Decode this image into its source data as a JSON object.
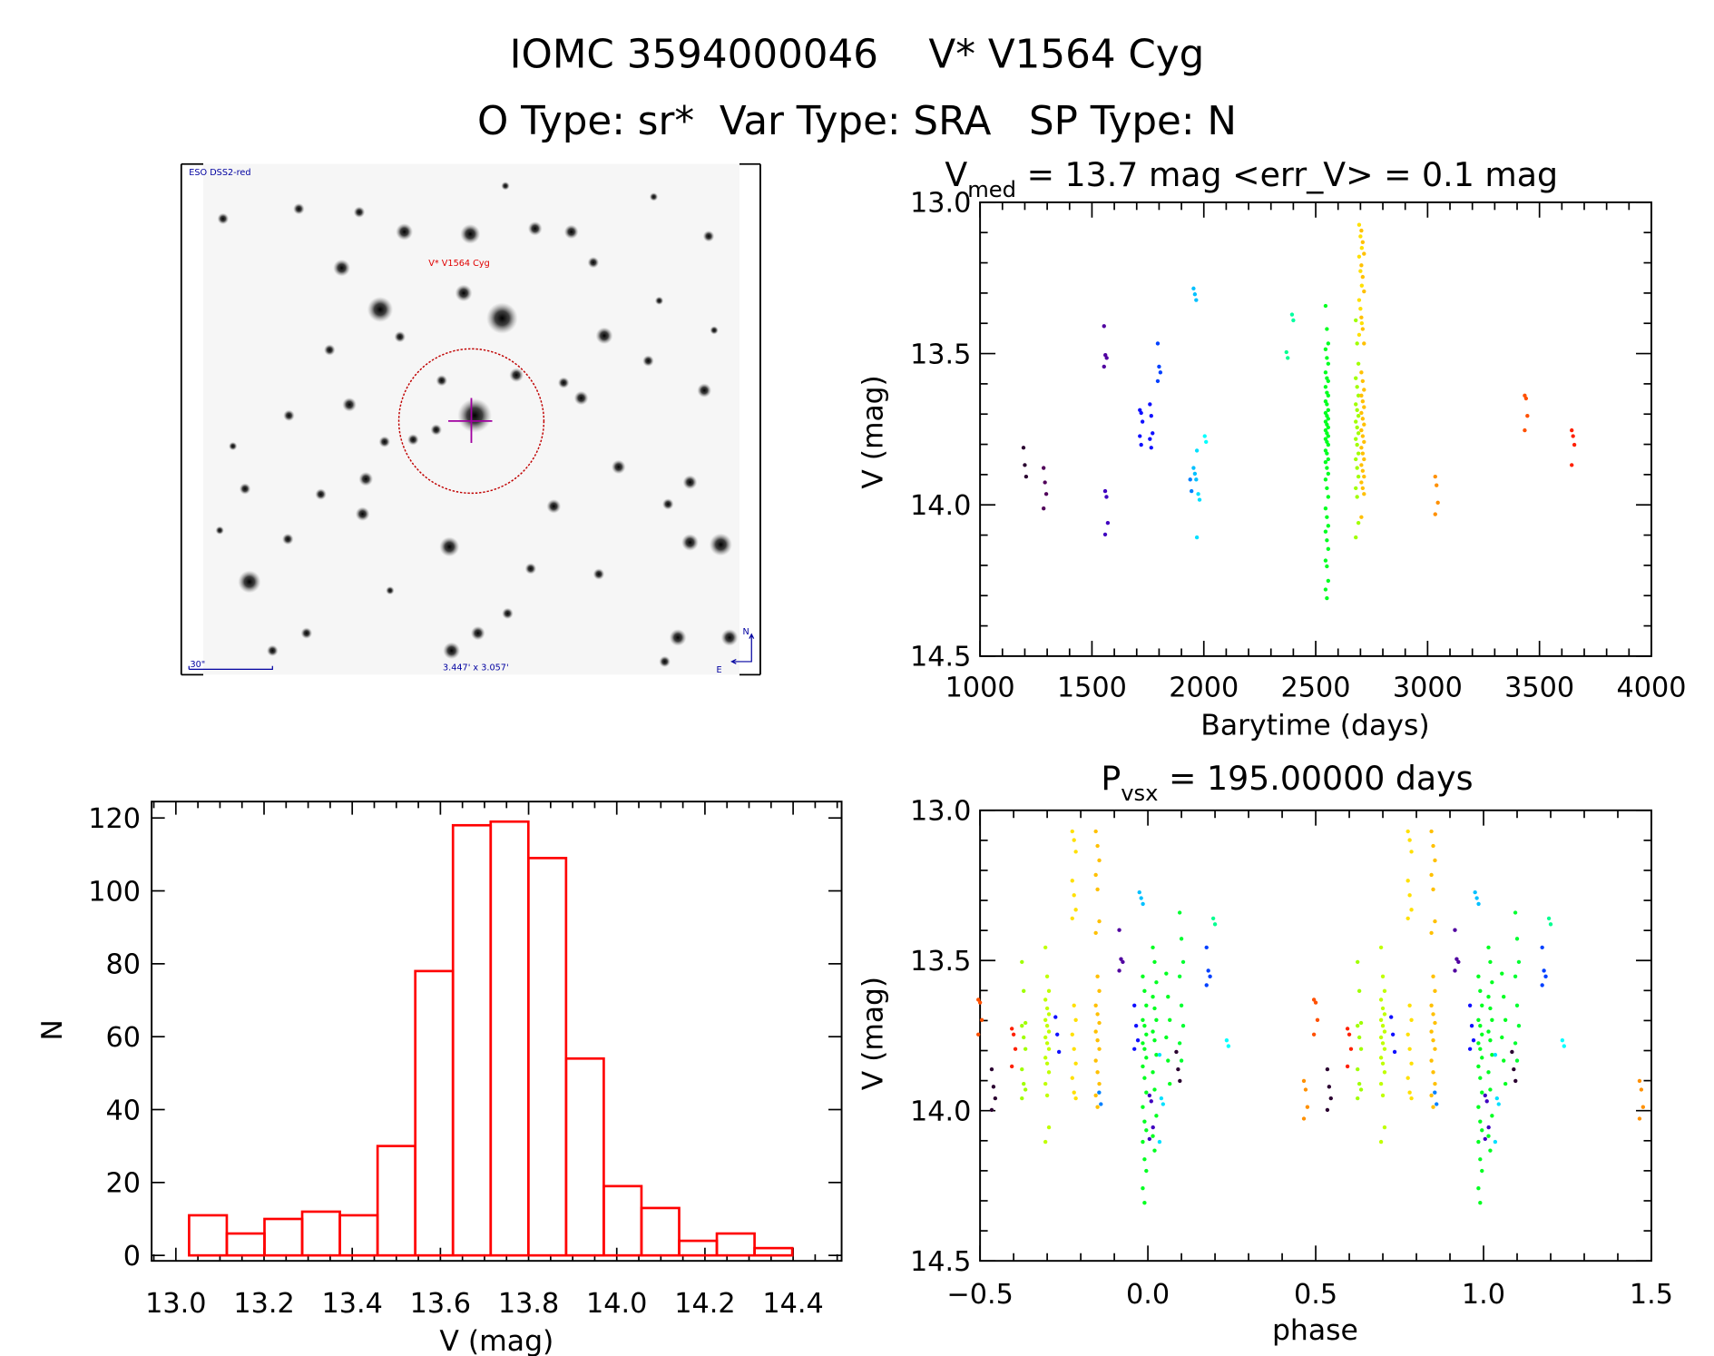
{
  "header": {
    "title_line1": "IOMC 3594000046    V* V1564 Cyg",
    "title_line2": "O Type: sr*  Var Type: SRA   SP Type: N"
  },
  "finder_image": {
    "survey_label": "ESO DSS2-red",
    "target_label": "V* V1564 Cyg",
    "scale_label": "30\"",
    "fov_label": "3.447' x 3.057'",
    "north_label": "N",
    "east_label": "E"
  },
  "chart_data": [
    {
      "id": "lightcurve",
      "type": "scatter",
      "title_parts": {
        "v": "V",
        "sub": "med",
        "rest": " = 13.7 mag <err_V> = 0.1 mag"
      },
      "xlabel": "Barytime (days)",
      "ylabel": "V (mag)",
      "xlim": [
        1000,
        4000
      ],
      "ylim": [
        14.5,
        13.0
      ],
      "y_inverted": true,
      "xticks": [
        "1000",
        "1500",
        "2000",
        "2500",
        "3000",
        "3500",
        "4000"
      ],
      "yticks": [
        "13.0",
        "13.5",
        "14.0",
        "14.5"
      ],
      "groups": [
        {
          "x": 1200,
          "color": "#2a0030",
          "y": [
            13.81,
            13.87,
            13.91
          ]
        },
        {
          "x": 1290,
          "color": "#50005a",
          "y": [
            13.88,
            13.93,
            13.97,
            14.02
          ]
        },
        {
          "x": 1560,
          "color": "#5000a0",
          "y": [
            13.39,
            13.49,
            13.5,
            13.53
          ]
        },
        {
          "x": 1565,
          "color": "#4000c0",
          "y": [
            13.96,
            13.98,
            14.07,
            14.11
          ]
        },
        {
          "x": 1720,
          "color": "#1010ff",
          "y": [
            13.68,
            13.69,
            13.72,
            13.77,
            13.8
          ]
        },
        {
          "x": 1765,
          "color": "#1010ff",
          "y": [
            13.66,
            13.7,
            13.76,
            13.78,
            13.81
          ]
        },
        {
          "x": 1800,
          "color": "#0040ff",
          "y": [
            13.45,
            13.53,
            13.55,
            13.58
          ]
        },
        {
          "x": 1945,
          "color": "#0080ff",
          "y": [
            13.92,
            13.96
          ]
        },
        {
          "x": 1960,
          "color": "#00c0ff",
          "y": [
            13.26,
            13.28,
            13.3,
            13.88,
            13.9,
            13.92
          ]
        },
        {
          "x": 1975,
          "color": "#00e0ff",
          "y": [
            13.82,
            13.97,
            13.99,
            14.12
          ]
        },
        {
          "x": 2010,
          "color": "#00ffff",
          "y": [
            13.77,
            13.79
          ]
        },
        {
          "x": 2375,
          "color": "#00ff90",
          "y": [
            13.48,
            13.5
          ]
        },
        {
          "x": 2400,
          "color": "#00ffa0",
          "y": [
            13.35,
            13.37
          ]
        },
        {
          "x": 2550,
          "color": "#00ff20",
          "y": [
            13.32,
            13.4,
            13.45,
            13.47,
            13.5,
            13.52,
            13.55,
            13.57,
            13.58,
            13.6,
            13.62,
            13.63,
            13.65,
            13.66,
            13.68,
            13.69,
            13.7,
            13.71,
            13.72,
            13.73,
            13.74,
            13.75,
            13.76,
            13.77,
            13.78,
            13.79,
            13.8,
            13.82,
            13.83,
            13.85,
            13.86,
            13.88,
            13.9,
            13.92,
            13.95,
            13.98,
            14.02,
            14.05,
            14.08,
            14.1,
            14.13,
            14.16,
            14.2,
            14.22,
            14.27,
            14.3,
            14.33
          ]
        },
        {
          "x": 2685,
          "color": "#a0ff00",
          "y": [
            13.37,
            13.45,
            13.52,
            13.57,
            13.6,
            13.63,
            13.66,
            13.68,
            13.7,
            13.72,
            13.74,
            13.76,
            13.78,
            13.8,
            13.83,
            13.85,
            13.88,
            13.91,
            13.95,
            13.98,
            14.07,
            14.12
          ]
        },
        {
          "x": 2700,
          "color": "#ffe000",
          "y": [
            13.04,
            13.08,
            13.12,
            13.15,
            13.2,
            13.25,
            13.3,
            13.33,
            13.38,
            13.42
          ]
        },
        {
          "x": 2710,
          "color": "#ffc000",
          "y": [
            13.06,
            13.1,
            13.14,
            13.18,
            13.22,
            13.27,
            13.36,
            13.4,
            13.45,
            13.55,
            13.58,
            13.61,
            13.63,
            13.65,
            13.67,
            13.69,
            13.71,
            13.73,
            13.75,
            13.77,
            13.79,
            13.81,
            13.83,
            13.85,
            13.87,
            13.89,
            13.91,
            13.93,
            13.95,
            13.97,
            14.05
          ]
        },
        {
          "x": 3040,
          "color": "#ff9000",
          "y": [
            13.91,
            13.94,
            14.0,
            14.04
          ]
        },
        {
          "x": 3440,
          "color": "#ff5000",
          "y": [
            13.63,
            13.64,
            13.7,
            13.75
          ]
        },
        {
          "x": 3650,
          "color": "#ff2000",
          "y": [
            13.75,
            13.77,
            13.8,
            13.87
          ]
        }
      ]
    },
    {
      "id": "histogram",
      "type": "bar",
      "xlabel": "V (mag)",
      "ylabel": "N",
      "xlim": [
        12.945,
        14.51
      ],
      "ylim": [
        -1.5,
        124.5
      ],
      "xticks": [
        "13.0",
        "13.2",
        "13.4",
        "13.6",
        "13.8",
        "14.0",
        "14.2",
        "14.4"
      ],
      "yticks": [
        "0",
        "20",
        "40",
        "60",
        "80",
        "100",
        "120"
      ],
      "bin_start": 13.03,
      "bin_width": 0.0855,
      "values": [
        11,
        6,
        10,
        12,
        11,
        30,
        78,
        118,
        119,
        109,
        54,
        19,
        13,
        4,
        6,
        2
      ],
      "color": "#ff0000"
    },
    {
      "id": "phase",
      "type": "scatter",
      "title_parts": {
        "v": "P",
        "sub": "vsx",
        "rest": " = 195.00000 days"
      },
      "xlabel": "phase",
      "ylabel": "V (mag)",
      "xlim": [
        -0.5,
        1.5
      ],
      "ylim": [
        14.5,
        13.0
      ],
      "y_inverted": true,
      "xticks": [
        "−0.5",
        "0.0",
        "0.5",
        "1.0",
        "1.5"
      ],
      "yticks": [
        "13.0",
        "13.5",
        "14.0",
        "14.5"
      ],
      "repeated_cycles": 2,
      "groups": [
        {
          "p": -0.5,
          "color": "#ff5000",
          "y": [
            13.63,
            13.64,
            13.7,
            13.75
          ]
        },
        {
          "p": -0.46,
          "color": "#2a0030",
          "y": [
            13.87,
            13.93,
            13.97,
            14.01
          ]
        },
        {
          "p": -0.4,
          "color": "#ff2000",
          "y": [
            13.73,
            13.75,
            13.8,
            13.86
          ]
        },
        {
          "p": -0.37,
          "color": "#a0ff00",
          "y": [
            13.5,
            13.6,
            13.71,
            13.72,
            13.76,
            13.8,
            13.87,
            13.92,
            13.94,
            13.97
          ]
        },
        {
          "p": -0.3,
          "color": "#c0ff00",
          "y": [
            13.45,
            13.55,
            13.6,
            13.63,
            13.66,
            13.68,
            13.7,
            13.72,
            13.74,
            13.76,
            13.78,
            13.8,
            13.83,
            13.85,
            13.88,
            13.92,
            13.96,
            14.07,
            14.12
          ]
        },
        {
          "p": -0.27,
          "color": "#1010ff",
          "y": [
            13.69,
            13.75,
            13.81
          ]
        },
        {
          "p": -0.22,
          "color": "#ffe000",
          "y": [
            13.05,
            13.08,
            13.12,
            13.22,
            13.27,
            13.32,
            13.35,
            13.65,
            13.7,
            13.75,
            13.8,
            13.85,
            13.9,
            13.95,
            13.97
          ]
        },
        {
          "p": -0.15,
          "color": "#ffc000",
          "y": [
            13.05,
            13.1,
            13.15,
            13.2,
            13.25,
            13.36,
            13.4,
            13.55,
            13.6,
            13.65,
            13.68,
            13.71,
            13.74,
            13.77,
            13.8,
            13.84,
            13.88,
            13.92,
            13.96,
            14.0
          ]
        },
        {
          "p": -0.14,
          "color": "#0080ff",
          "y": [
            13.95,
            13.99
          ]
        },
        {
          "p": -0.08,
          "color": "#5000a0",
          "y": [
            13.39,
            13.49,
            13.5,
            13.53
          ]
        },
        {
          "p": -0.035,
          "color": "#1010ff",
          "y": [
            13.65,
            13.72,
            13.77,
            13.8
          ]
        },
        {
          "p": -0.02,
          "color": "#00c0ff",
          "y": [
            13.26,
            13.28,
            13.3
          ]
        },
        {
          "p": -0.01,
          "color": "#00ff20",
          "y": [
            13.55,
            13.6,
            13.65,
            13.7,
            13.72,
            13.75,
            13.78,
            13.8,
            13.83,
            13.86,
            13.9,
            13.95,
            14.0,
            14.05,
            14.08,
            14.12,
            14.18,
            14.22,
            14.28,
            14.33
          ]
        },
        {
          "p": 0.01,
          "color": "#4000c0",
          "y": [
            13.96,
            13.98,
            14.07,
            14.11
          ]
        },
        {
          "p": 0.02,
          "color": "#00ff20",
          "y": [
            13.45,
            13.5,
            13.57,
            13.62,
            13.66,
            13.7,
            13.74,
            13.77,
            13.82,
            13.88,
            13.94,
            14.03,
            14.1,
            14.15
          ]
        },
        {
          "p": 0.04,
          "color": "#00e0ff",
          "y": [
            13.82,
            13.97,
            13.99,
            14.12
          ]
        },
        {
          "p": 0.06,
          "color": "#00ff20",
          "y": [
            13.54,
            13.62,
            13.7,
            13.76,
            13.84,
            13.92
          ]
        },
        {
          "p": 0.09,
          "color": "#2a0030",
          "y": [
            13.81,
            13.87,
            13.91
          ]
        },
        {
          "p": 0.1,
          "color": "#00ff30",
          "y": [
            13.33,
            13.42,
            13.5,
            13.55,
            13.65,
            13.72,
            13.78,
            13.84
          ]
        },
        {
          "p": 0.18,
          "color": "#0040ff",
          "y": [
            13.45,
            13.53,
            13.55,
            13.58
          ]
        },
        {
          "p": 0.2,
          "color": "#00ff90",
          "y": [
            13.35,
            13.37
          ]
        },
        {
          "p": 0.24,
          "color": "#00ffff",
          "y": [
            13.77,
            13.79
          ]
        },
        {
          "p": 0.47,
          "color": "#ff9000",
          "y": [
            13.91,
            13.94,
            14.0,
            14.04
          ]
        }
      ]
    }
  ]
}
